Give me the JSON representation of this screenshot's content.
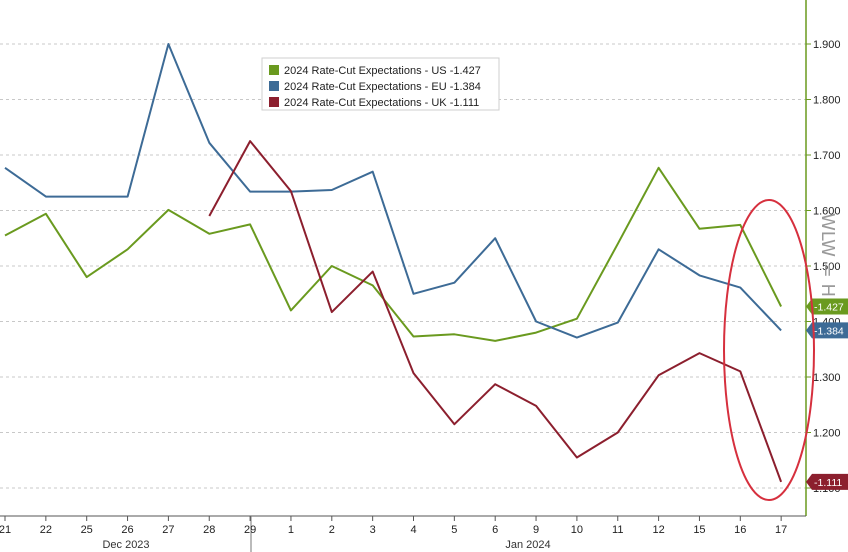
{
  "chart_data": {
    "type": "line",
    "categories": [
      "21",
      "22",
      "25",
      "26",
      "27",
      "28",
      "29",
      "1",
      "2",
      "3",
      "4",
      "5",
      "6",
      "9",
      "10",
      "11",
      "12",
      "15",
      "16",
      "17"
    ],
    "month_labels": [
      "Dec 2023",
      "Jan 2024"
    ],
    "ylim": [
      1.03,
      1.97
    ],
    "y_ticks": [
      1.1,
      1.2,
      1.3,
      1.4,
      1.5,
      1.6,
      1.7,
      1.8,
      1.9
    ],
    "y_tick_labels": [
      "1.100",
      "1.200",
      "1.300",
      "1.400",
      "1.500",
      "1.600",
      "1.700",
      "1.800",
      "1.900"
    ],
    "grid": "horizontal dashed",
    "legend_position": "top-center",
    "series": [
      {
        "name": "2024 Rate-Cut Expectations - US -1.427",
        "color": "#6a9a1f",
        "last_label": "-1.427",
        "values": [
          1.555,
          1.594,
          1.48,
          1.53,
          1.601,
          1.558,
          1.575,
          1.42,
          1.5,
          1.465,
          1.373,
          1.377,
          1.365,
          1.38,
          1.405,
          1.54,
          1.677,
          1.567,
          1.574,
          1.427
        ]
      },
      {
        "name": "2024 Rate-Cut Expectations - EU -1.384",
        "color": "#3d6b96",
        "last_label": "-1.384",
        "values": [
          1.677,
          1.625,
          1.625,
          1.625,
          1.9,
          1.722,
          1.634,
          1.634,
          1.637,
          1.67,
          1.45,
          1.47,
          1.55,
          1.4,
          1.371,
          1.398,
          1.53,
          1.483,
          1.461,
          1.384
        ]
      },
      {
        "name": "2024 Rate-Cut Expectations - UK -1.111",
        "color": "#8c1f2e",
        "last_label": "-1.111",
        "start_index": 5,
        "values": [
          null,
          null,
          null,
          null,
          null,
          1.59,
          1.725,
          1.635,
          1.417,
          1.49,
          1.307,
          1.215,
          1.287,
          1.248,
          1.155,
          1.2,
          1.303,
          1.343,
          1.31,
          1.111
        ]
      }
    ]
  },
  "watermark": "WLW = H",
  "highlight_color": "#d6303e"
}
